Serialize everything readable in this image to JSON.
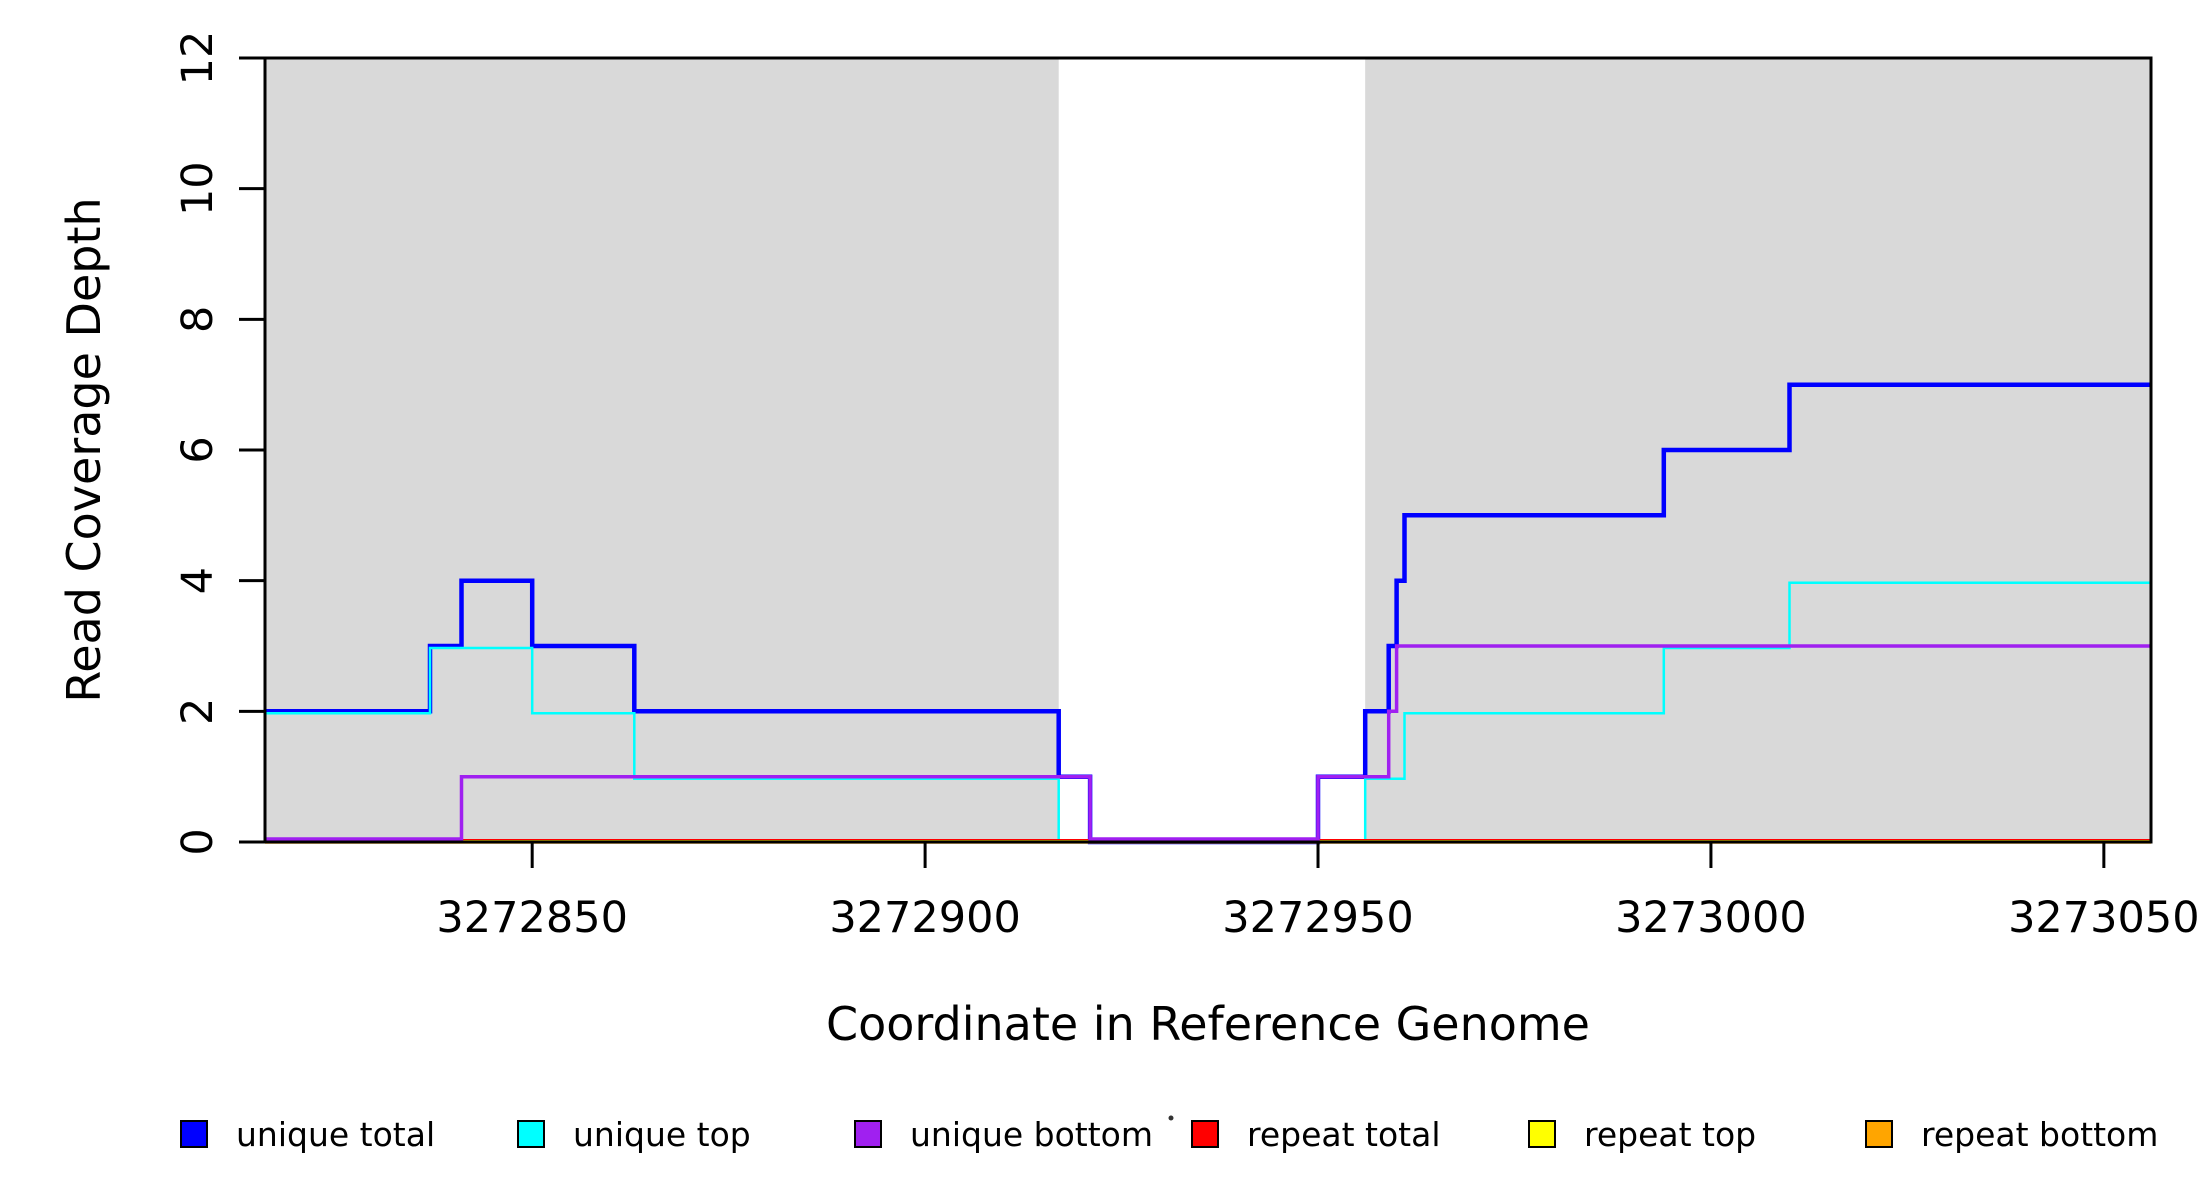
{
  "chart_data": {
    "type": "line",
    "step": true,
    "title": "",
    "xlabel": "Coordinate in Reference Genome",
    "ylabel": "Read Coverage Depth",
    "xlim": [
      3272816,
      3273056
    ],
    "ylim": [
      0,
      12
    ],
    "xticks": [
      3272850,
      3272900,
      3272950,
      3273000,
      3273050
    ],
    "yticks": [
      0,
      2,
      4,
      6,
      8,
      10,
      12
    ],
    "grid": false,
    "legend_position": "bottom",
    "band_color": "#D9D9D9",
    "shaded_regions": [
      [
        3272816,
        3272917
      ],
      [
        3272956,
        3273056
      ]
    ],
    "series": [
      {
        "name": "unique total",
        "color": "#0000FF",
        "steps": [
          [
            3272816,
            2
          ],
          [
            3272837,
            3
          ],
          [
            3272841,
            4
          ],
          [
            3272850,
            3
          ],
          [
            3272863,
            2
          ],
          [
            3272917,
            1
          ],
          [
            3272921,
            0
          ],
          [
            3272950,
            1
          ],
          [
            3272956,
            2
          ],
          [
            3272959,
            3
          ],
          [
            3272960,
            4
          ],
          [
            3272961,
            5
          ],
          [
            3272994,
            6
          ],
          [
            3273010,
            7
          ]
        ]
      },
      {
        "name": "unique top",
        "color": "#00FFFF",
        "steps": [
          [
            3272816,
            2
          ],
          [
            3272837,
            3
          ],
          [
            3272850,
            2
          ],
          [
            3272863,
            1
          ],
          [
            3272917,
            0
          ],
          [
            3272956,
            1
          ],
          [
            3272961,
            2
          ],
          [
            3272994,
            3
          ],
          [
            3273010,
            4
          ]
        ]
      },
      {
        "name": "unique bottom",
        "color": "#A020F0",
        "steps": [
          [
            3272816,
            0
          ],
          [
            3272841,
            1
          ],
          [
            3272921,
            0
          ],
          [
            3272950,
            1
          ],
          [
            3272959,
            2
          ],
          [
            3272960,
            3
          ]
        ]
      },
      {
        "name": "repeat total",
        "color": "#FF0000",
        "steps": [
          [
            3272816,
            0
          ]
        ]
      },
      {
        "name": "repeat top",
        "color": "#FFFF00",
        "steps": [
          [
            3272816,
            0
          ]
        ]
      },
      {
        "name": "repeat bottom",
        "color": "#FFA500",
        "steps": [
          [
            3272816,
            0
          ]
        ]
      }
    ]
  }
}
